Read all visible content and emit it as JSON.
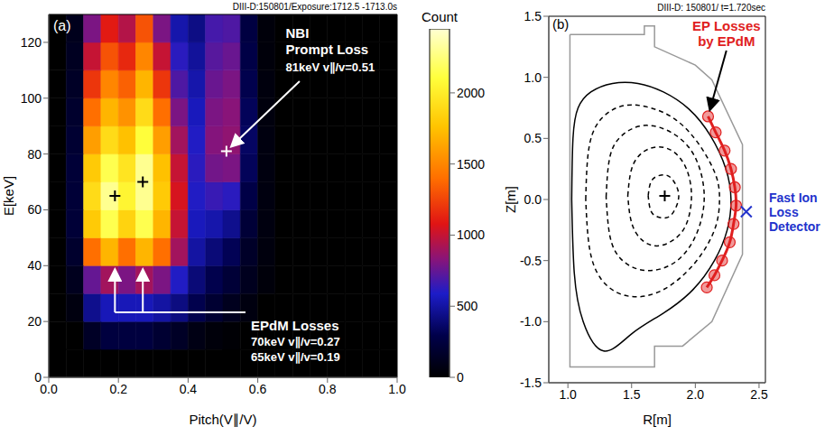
{
  "chart_data": [
    {
      "type": "heatmap",
      "title": "DIII-D:150801/Exposure:1712.5 -1713.0s",
      "panel": "(a)",
      "xlabel": "Pitch(V∥/V)",
      "ylabel": "E[keV]",
      "xlim": [
        0,
        1
      ],
      "xticks": [
        {
          "value": 0,
          "label": "0.0"
        },
        0.2,
        0.4,
        0.6,
        0.8,
        {
          "value": 1,
          "label": "1.0"
        }
      ],
      "ylim": [
        0,
        130
      ],
      "yticks": [
        0,
        20,
        40,
        60,
        80,
        100,
        120
      ],
      "x_bins": [
        0,
        0.05,
        0.1,
        0.15,
        0.2,
        0.25,
        0.3,
        0.35,
        0.4,
        0.45,
        0.5,
        0.55,
        0.6,
        0.65,
        0.7,
        0.75,
        0.8,
        0.85,
        0.9,
        0.95,
        1
      ],
      "y_bins": [
        0,
        10,
        20,
        30,
        40,
        50,
        60,
        70,
        80,
        90,
        100,
        110,
        120,
        130
      ],
      "counts": [
        [
          0,
          0,
          0,
          0,
          0,
          0,
          0,
          0,
          0,
          0,
          0,
          0,
          0,
          0,
          0,
          0,
          0,
          0,
          0,
          0
        ],
        [
          0,
          0,
          150,
          250,
          250,
          250,
          200,
          150,
          80,
          40,
          20,
          0,
          0,
          0,
          0,
          0,
          0,
          0,
          0,
          0
        ],
        [
          0,
          60,
          450,
          550,
          550,
          550,
          500,
          420,
          300,
          200,
          120,
          60,
          0,
          0,
          0,
          0,
          0,
          0,
          0,
          0
        ],
        [
          0,
          120,
          750,
          900,
          800,
          900,
          800,
          600,
          400,
          300,
          220,
          120,
          40,
          0,
          0,
          0,
          0,
          0,
          0,
          0
        ],
        [
          0,
          180,
          1400,
          1700,
          1400,
          1700,
          1400,
          900,
          500,
          400,
          320,
          160,
          50,
          0,
          0,
          0,
          0,
          0,
          0,
          0
        ],
        [
          0,
          220,
          1800,
          2150,
          1850,
          2150,
          1700,
          1000,
          560,
          520,
          450,
          220,
          60,
          0,
          0,
          0,
          0,
          0,
          0,
          0
        ],
        [
          0,
          220,
          1900,
          2300,
          2050,
          2300,
          1800,
          1050,
          600,
          650,
          620,
          280,
          60,
          0,
          0,
          0,
          0,
          0,
          0,
          0
        ],
        [
          0,
          220,
          1800,
          2150,
          1950,
          2300,
          1750,
          1000,
          620,
          780,
          800,
          330,
          60,
          0,
          0,
          0,
          0,
          0,
          0,
          0
        ],
        [
          0,
          200,
          1600,
          1900,
          1750,
          2100,
          1600,
          900,
          600,
          820,
          850,
          350,
          60,
          0,
          0,
          0,
          0,
          0,
          0,
          0
        ],
        [
          0,
          180,
          1400,
          1700,
          1550,
          1900,
          1400,
          800,
          560,
          800,
          830,
          330,
          50,
          0,
          0,
          0,
          0,
          0,
          0,
          0
        ],
        [
          0,
          150,
          1200,
          1500,
          1350,
          1700,
          1200,
          700,
          520,
          760,
          800,
          300,
          50,
          0,
          0,
          0,
          0,
          0,
          0,
          0
        ],
        [
          0,
          130,
          1000,
          1300,
          1150,
          1500,
          1000,
          620,
          480,
          720,
          760,
          280,
          40,
          0,
          0,
          0,
          0,
          0,
          0,
          0
        ],
        [
          0,
          110,
          800,
          1100,
          950,
          1300,
          800,
          520,
          430,
          680,
          700,
          260,
          40,
          0,
          0,
          0,
          0,
          0,
          0,
          0
        ]
      ],
      "colorbar": {
        "label": "Count",
        "range": [
          0,
          2450
        ],
        "ticks": [
          0,
          500,
          1000,
          1500,
          2000
        ]
      },
      "series": [
        {
          "type": "scatter",
          "marker": "+",
          "x": [
            0.51,
            0.27,
            0.19
          ],
          "y": [
            81,
            70,
            65
          ],
          "colors": [
            "white",
            "black",
            "black"
          ]
        }
      ],
      "annotations": [
        {
          "title": [
            "NBI",
            "Prompt Loss"
          ],
          "detail": [
            "81keV v∥/v=0.51"
          ],
          "color": "white"
        },
        {
          "title": [
            "EPdM Losses"
          ],
          "detail": [
            "70keV v∥/v=0.27",
            "65keV v∥/v=0.19"
          ],
          "color": "white"
        }
      ]
    },
    {
      "type": "line",
      "title": "DIII-D: 150801/ t=1.720sec",
      "panel": "(b)",
      "xlabel": "R[m]",
      "ylabel": "Z[m]",
      "xlim": [
        0.85,
        2.55
      ],
      "xticks": [
        {
          "value": 1,
          "label": "1.0"
        },
        1.5,
        {
          "value": 2,
          "label": "2.0"
        },
        2.5
      ],
      "ylim": [
        -1.5,
        1.5
      ],
      "yticks": [
        -1.5,
        {
          "value": -1,
          "label": "-1.0"
        },
        -0.5,
        {
          "value": 0,
          "label": "0.0"
        },
        0.5,
        {
          "value": 1,
          "label": "1.0"
        },
        1.5
      ],
      "series": [
        {
          "color": "#999999",
          "line_style": "solid",
          "x": [
            1.016,
            1.6,
            1.6,
            1.68,
            1.68,
            2.0,
            2.13,
            2.37,
            2.37,
            2.13,
            1.9,
            1.68,
            1.68,
            1.016,
            1.016
          ],
          "y": [
            1.35,
            1.35,
            1.42,
            1.42,
            1.25,
            1.1,
            0.98,
            0.45,
            -0.45,
            -1.0,
            -1.2,
            -1.2,
            -1.37,
            -1.37,
            1.35
          ]
        },
        {
          "color": "#000000",
          "line_style": "solid",
          "x": [
            1.03,
            1.04,
            1.08,
            1.18,
            1.35,
            1.55,
            1.75,
            1.95,
            2.12,
            2.24,
            2.28,
            2.25,
            2.15,
            1.98,
            1.75,
            1.5,
            1.28,
            1.12,
            1.05,
            1.03
          ],
          "y": [
            0.0,
            0.5,
            0.75,
            0.88,
            0.95,
            0.95,
            0.88,
            0.74,
            0.52,
            0.25,
            0.0,
            -0.25,
            -0.5,
            -0.74,
            -0.93,
            -1.1,
            -1.24,
            -1.0,
            -0.6,
            0.0
          ]
        },
        {
          "color": "#000000",
          "line_style": "dashed",
          "x": [
            1.14,
            1.17,
            1.28,
            1.45,
            1.65,
            1.85,
            2.03,
            2.16,
            2.19,
            2.16,
            2.04,
            1.86,
            1.65,
            1.43,
            1.26,
            1.17,
            1.14
          ],
          "y": [
            0.0,
            0.45,
            0.68,
            0.77,
            0.75,
            0.65,
            0.45,
            0.2,
            0.0,
            -0.22,
            -0.46,
            -0.66,
            -0.78,
            -0.78,
            -0.65,
            -0.4,
            0.0
          ]
        },
        {
          "color": "#000000",
          "line_style": "dashed",
          "x": [
            1.3,
            1.33,
            1.42,
            1.56,
            1.72,
            1.88,
            2.01,
            2.07,
            2.01,
            1.88,
            1.72,
            1.55,
            1.41,
            1.33,
            1.3
          ],
          "y": [
            0.02,
            0.35,
            0.52,
            0.6,
            0.59,
            0.5,
            0.32,
            0.02,
            -0.28,
            -0.48,
            -0.57,
            -0.57,
            -0.48,
            -0.3,
            0.02
          ]
        },
        {
          "color": "#000000",
          "line_style": "dashed",
          "x": [
            1.47,
            1.5,
            1.58,
            1.7,
            1.83,
            1.93,
            1.97,
            1.93,
            1.83,
            1.7,
            1.58,
            1.5,
            1.47
          ],
          "y": [
            0.03,
            0.25,
            0.38,
            0.43,
            0.39,
            0.25,
            0.03,
            -0.2,
            -0.33,
            -0.38,
            -0.33,
            -0.19,
            0.03
          ]
        },
        {
          "color": "#000000",
          "line_style": "dashed",
          "x": [
            1.63,
            1.65,
            1.7,
            1.77,
            1.83,
            1.87,
            1.83,
            1.77,
            1.7,
            1.65,
            1.63
          ],
          "y": [
            0.03,
            0.14,
            0.19,
            0.2,
            0.15,
            0.03,
            -0.1,
            -0.15,
            -0.14,
            -0.09,
            0.03
          ]
        },
        {
          "color": "#e02020",
          "line_style": "solid",
          "marker": "o",
          "x": [
            2.1,
            2.16,
            2.23,
            2.28,
            2.31,
            2.32,
            2.3,
            2.27,
            2.21,
            2.15,
            2.09
          ],
          "y": [
            0.68,
            0.55,
            0.4,
            0.25,
            0.1,
            -0.05,
            -0.2,
            -0.35,
            -0.5,
            -0.62,
            -0.72
          ]
        },
        {
          "type": "scatter",
          "marker": "+",
          "color": "#000000",
          "x": [
            1.76
          ],
          "y": [
            0.03
          ]
        },
        {
          "type": "scatter",
          "marker": "x",
          "color": "#2233cc",
          "x": [
            2.4
          ],
          "y": [
            -0.1
          ]
        }
      ],
      "annotations": [
        {
          "lines": [
            "EP Losses",
            "by EPdM"
          ],
          "color": "#e02020"
        },
        {
          "lines": [
            "Fast Ion",
            "Loss",
            "Detector"
          ],
          "color": "#2233cc"
        }
      ]
    }
  ]
}
